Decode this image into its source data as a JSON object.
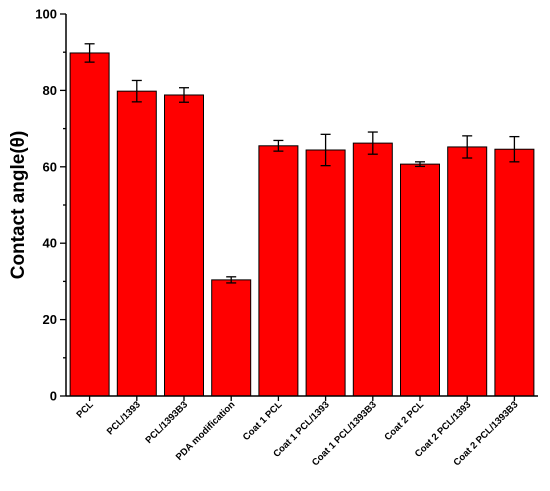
{
  "chart_data": {
    "type": "bar",
    "title": "",
    "xlabel": "",
    "ylabel": "Contact angle(θ)",
    "ylim": [
      0,
      100
    ],
    "yticks": [
      0,
      20,
      40,
      60,
      80,
      100
    ],
    "grid": false,
    "legend": "none",
    "bar_color": "#ff0000",
    "error_bar_color": "#000000",
    "categories": [
      "PCL",
      "PCL/1393",
      "PCL/1393B3",
      "PDA modification",
      "Coat 1 PCL",
      "Coat 1 PCL/1393",
      "Coat 1 PCL/1393B3",
      "Coat 2 PCL",
      "Coat 2 PCL/1393",
      "Coat 2 PCL/1393B3"
    ],
    "values": [
      89.8,
      79.8,
      78.8,
      30.4,
      65.5,
      64.4,
      66.2,
      60.7,
      65.2,
      64.6
    ],
    "errors": [
      2.4,
      2.8,
      1.9,
      0.8,
      1.4,
      4.1,
      2.9,
      0.6,
      2.9,
      3.3
    ]
  }
}
